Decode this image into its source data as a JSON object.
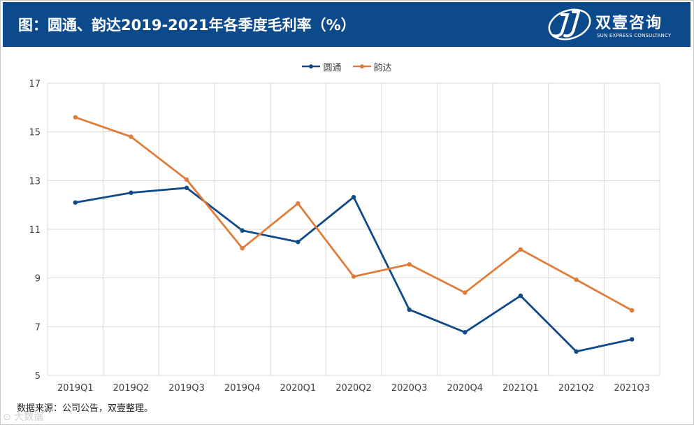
{
  "header": {
    "title": "图：圆通、韵达2019-2021年各季度毛利率（%）",
    "logo_name": "双壹咨询",
    "logo_subtitle": "SUN EXPRESS CONSULTANCY"
  },
  "footer": {
    "source": "数据来源：公司公告，双壹整理。",
    "watermark": "⊙ 大数据"
  },
  "colors": {
    "header_bg": "#0c4a8c",
    "series_yto": "#114a87",
    "series_yunda": "#e07d3a",
    "grid": "#d9d9d9"
  },
  "chart_data": {
    "type": "line",
    "title": "圆通、韵达2019-2021年各季度毛利率（%）",
    "xlabel": "",
    "ylabel": "",
    "categories": [
      "2019Q1",
      "2019Q2",
      "2019Q3",
      "2019Q4",
      "2020Q1",
      "2020Q2",
      "2020Q3",
      "2020Q4",
      "2021Q1",
      "2021Q2",
      "2021Q3"
    ],
    "ylim": [
      5,
      17
    ],
    "yticks": [
      5,
      7,
      9,
      11,
      13,
      15,
      17
    ],
    "grid": true,
    "legend_position": "top-center",
    "series": [
      {
        "name": "圆通",
        "color": "#114a87",
        "values": [
          12.1,
          12.5,
          12.7,
          10.95,
          10.48,
          12.32,
          7.7,
          6.77,
          8.27,
          5.98,
          6.48
        ]
      },
      {
        "name": "韵达",
        "color": "#e07d3a",
        "values": [
          15.6,
          14.8,
          13.04,
          10.22,
          12.06,
          9.06,
          9.56,
          8.4,
          10.17,
          8.93,
          7.67
        ]
      }
    ]
  }
}
